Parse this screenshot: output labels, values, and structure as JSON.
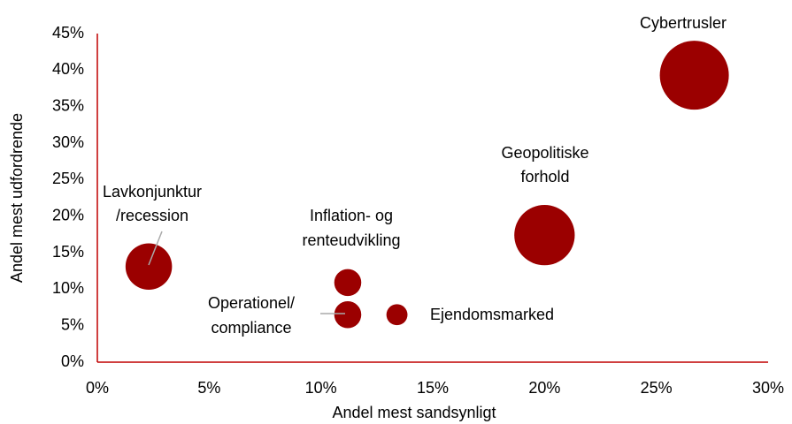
{
  "chart_data": {
    "type": "scatter",
    "x_label": "Andel mest sandsynligt",
    "y_label": "Andel mest udfordrende",
    "labels": [
      [
        "Cybertrusler"
      ],
      [
        "Geopolitiske",
        "forhold"
      ],
      [
        "Lavkonjunktur",
        "/recession"
      ],
      [
        "Inflation- og",
        "renteudvikling"
      ],
      [
        "Operationel/",
        "compliance"
      ],
      [
        "Ejendomsmarked"
      ]
    ],
    "x": [
      26.7,
      20.0,
      2.3,
      11.2,
      11.2,
      13.4
    ],
    "values": [
      39.3,
      17.4,
      13.1,
      10.9,
      6.5,
      6.5
    ],
    "sizes": [
      15,
      11.5,
      6.8,
      2.3,
      2.3,
      1.4
    ],
    "color": "#9b0000",
    "axis_color": "#c00000",
    "xlim": [
      0,
      30
    ],
    "xticks": [
      {
        "value": 0,
        "label": "0%"
      },
      {
        "value": 5,
        "label": "5%"
      },
      {
        "value": 10,
        "label": "10%"
      },
      {
        "value": 15,
        "label": "15%"
      },
      {
        "value": 20,
        "label": "20%"
      },
      {
        "value": 25,
        "label": "25%"
      },
      {
        "value": 30,
        "label": "30%"
      }
    ],
    "ylim": [
      0,
      45
    ],
    "yticks": [
      {
        "value": 0,
        "label": "0%"
      },
      {
        "value": 5,
        "label": "5%"
      },
      {
        "value": 10,
        "label": "10%"
      },
      {
        "value": 15,
        "label": "15%"
      },
      {
        "value": 20,
        "label": "20%"
      },
      {
        "value": 25,
        "label": "25%"
      },
      {
        "value": 30,
        "label": "30%"
      },
      {
        "value": 35,
        "label": "35%"
      },
      {
        "value": 40,
        "label": "40%"
      },
      {
        "value": 45,
        "label": "45%"
      }
    ],
    "grid": false
  }
}
